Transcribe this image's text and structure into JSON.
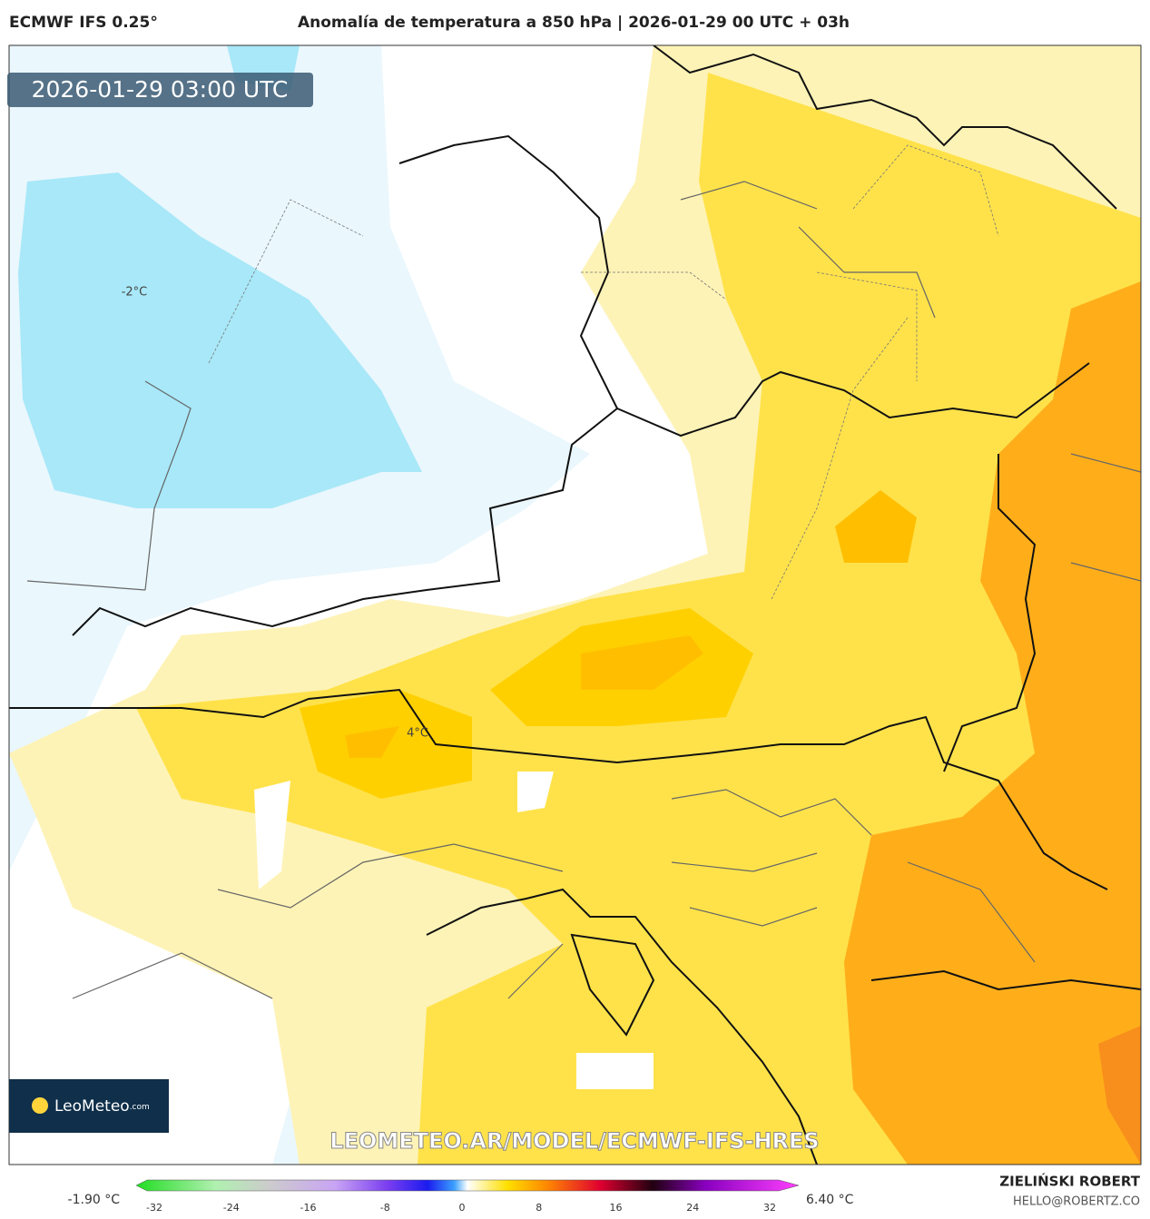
{
  "header": {
    "model": "ECMWF IFS 0.25°",
    "title": "Anomalía de temperatura a 850 hPa | 2026-01-29 00 UTC + 03h"
  },
  "timestamp": "2026-01-29 03:00 UTC",
  "map_labels": [
    "-2°C",
    "4°C"
  ],
  "logo": {
    "name": "LeoMeteo",
    "suffix": ".com"
  },
  "watermark": "LEOMETEO.AR/MODEL/ECMWF-IFS-HRES",
  "colorbar": {
    "min_label": "-1.90 °C",
    "max_label": "6.40 °C",
    "ticks": [
      -32,
      -24,
      -16,
      -8,
      0,
      8,
      16,
      24,
      32
    ]
  },
  "footer": {
    "author": "ZIELIŃSKI ROBERT",
    "email": "HELLO@ROBERTZ.CO"
  }
}
